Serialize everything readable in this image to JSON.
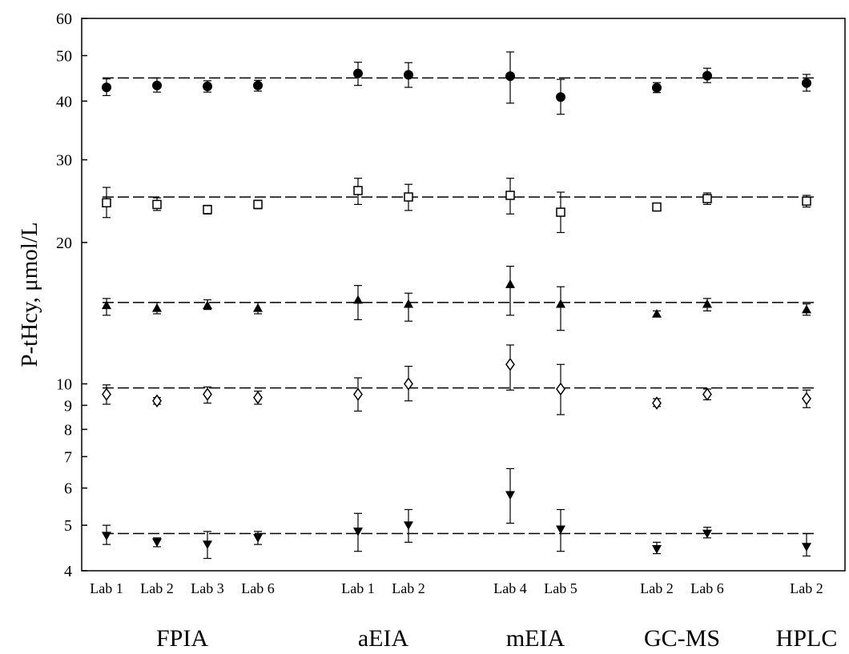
{
  "chart_data": {
    "type": "scatter",
    "title": "",
    "ylabel": "P-tHcy, μmol/L",
    "xlabel": "",
    "yscale": "log",
    "ylim": [
      4,
      60
    ],
    "yticks": [
      "4",
      "5",
      "6",
      "7",
      "8",
      "9",
      "10",
      "20",
      "30",
      "40",
      "50",
      "60"
    ],
    "yticks_values": [
      4,
      5,
      6,
      7,
      8,
      9,
      10,
      20,
      30,
      40,
      50,
      60
    ],
    "grid": false,
    "legend": "none",
    "categories": [
      "Lab 1",
      "Lab 2",
      "Lab 3",
      "Lab 6",
      "Lab 1",
      "Lab 2",
      "Lab 4",
      "Lab 5",
      "Lab 2",
      "Lab 6",
      "Lab 2"
    ],
    "groups": [
      {
        "name": "FPIA",
        "span": [
          0,
          3
        ]
      },
      {
        "name": "aEIA",
        "span": [
          4,
          5
        ]
      },
      {
        "name": "mEIA",
        "span": [
          6,
          7
        ]
      },
      {
        "name": "GC-MS",
        "span": [
          8,
          9
        ]
      },
      {
        "name": "HPLC",
        "span": [
          10,
          10
        ]
      }
    ],
    "series": [
      {
        "marker": "circle-filled",
        "reference": 44.8,
        "values": [
          42.8,
          43.2,
          43.0,
          43.2,
          45.8,
          45.5,
          45.2,
          40.8,
          42.7,
          45.3,
          43.7
        ],
        "err_low": [
          41.1,
          41.8,
          41.8,
          42.0,
          43.2,
          42.8,
          39.6,
          37.5,
          41.7,
          43.8,
          42.0
        ],
        "err_high": [
          44.6,
          44.8,
          44.2,
          44.3,
          48.4,
          48.3,
          50.9,
          44.5,
          43.8,
          47.0,
          45.6
        ]
      },
      {
        "marker": "square-open",
        "reference": 25.0,
        "values": [
          24.3,
          24.1,
          23.5,
          24.1,
          25.8,
          25.0,
          25.2,
          23.2,
          23.8,
          24.8,
          24.5
        ],
        "err_low": [
          22.6,
          23.4,
          23.0,
          23.6,
          24.1,
          23.4,
          23.0,
          21.0,
          23.5,
          24.1,
          23.8
        ],
        "err_high": [
          26.2,
          24.9,
          24.0,
          24.6,
          27.4,
          26.6,
          27.4,
          25.6,
          24.2,
          25.5,
          25.2
        ]
      },
      {
        "marker": "triangle-up-filled",
        "reference": 14.9,
        "values": [
          14.7,
          14.5,
          14.7,
          14.5,
          15.1,
          14.8,
          16.3,
          14.8,
          14.1,
          14.8,
          14.4
        ],
        "err_low": [
          14.0,
          14.1,
          14.4,
          14.1,
          13.7,
          13.6,
          14.0,
          13.0,
          13.9,
          14.3,
          14.0
        ],
        "err_high": [
          15.2,
          14.9,
          15.1,
          14.9,
          16.2,
          15.6,
          17.8,
          16.1,
          14.3,
          15.2,
          14.8
        ]
      },
      {
        "marker": "diamond-open",
        "reference": 9.8,
        "values": [
          9.5,
          9.2,
          9.5,
          9.35,
          9.5,
          10.0,
          11.0,
          9.75,
          9.1,
          9.5,
          9.3
        ],
        "err_low": [
          9.05,
          9.05,
          9.1,
          9.05,
          8.75,
          9.2,
          9.7,
          8.6,
          8.95,
          9.25,
          8.9
        ],
        "err_high": [
          9.95,
          9.35,
          9.85,
          9.65,
          10.3,
          10.9,
          12.1,
          11.0,
          9.3,
          9.75,
          9.7
        ]
      },
      {
        "marker": "triangle-down-filled",
        "reference": 4.8,
        "values": [
          4.75,
          4.6,
          4.55,
          4.7,
          4.85,
          5.0,
          5.8,
          4.9,
          4.45,
          4.8,
          4.5
        ],
        "err_low": [
          4.55,
          4.5,
          4.25,
          4.55,
          4.4,
          4.6,
          5.05,
          4.4,
          4.35,
          4.7,
          4.3
        ],
        "err_high": [
          5.0,
          4.7,
          4.85,
          4.85,
          5.3,
          5.4,
          6.6,
          5.4,
          4.6,
          4.95,
          4.8
        ]
      }
    ]
  }
}
